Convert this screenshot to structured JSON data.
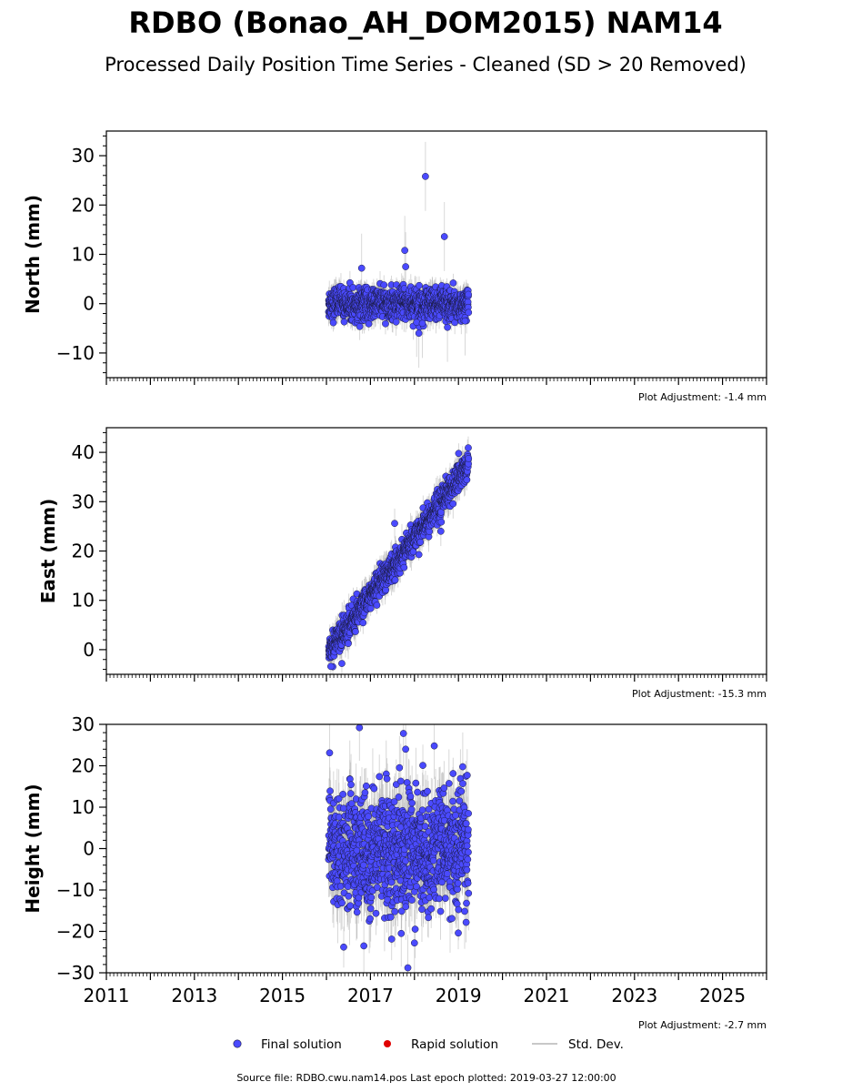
{
  "figure": {
    "title": "RDBO (Bonao_AH_DOM2015) NAM14",
    "subtitle": "Processed Daily Position Time Series - Cleaned (SD > 20 Removed)",
    "source_note": "Source file: RDBO.cwu.nam14.pos  Last epoch plotted: 2019-03-27 12:00:00"
  },
  "legend": {
    "final": "Final solution",
    "rapid": "Rapid solution",
    "std": "Std. Dev."
  },
  "colors": {
    "final": "#4a4aff",
    "rapid": "#e00000",
    "std": "#b0b0b0",
    "marker_edge": "#1a1a40"
  },
  "chart_data": [
    {
      "type": "scatter",
      "ylabel": "North (mm)",
      "adjustment": "Plot Adjustment: -1.4 mm",
      "xlim": [
        2011,
        2026
      ],
      "ylim": [
        -15,
        35
      ],
      "yticks": [
        "30",
        "20",
        "10",
        "0",
        "−10"
      ],
      "ytick_values": [
        30,
        20,
        10,
        0,
        -10
      ],
      "start": 2016.05,
      "end": 2019.23,
      "trend": [
        0,
        0
      ],
      "scatter": 1.6,
      "sd": 2.0,
      "outliers": [
        [
          2016.8,
          7.2
        ],
        [
          2017.78,
          10.8
        ],
        [
          2017.8,
          7.5
        ],
        [
          2018.25,
          25.8
        ],
        [
          2018.68,
          13.6
        ],
        [
          2018.1,
          -6.0
        ],
        [
          2018.05,
          -3.8
        ],
        [
          2018.75,
          -4.8
        ],
        [
          2019.15,
          -3.5
        ],
        [
          2018.18,
          -4.0
        ]
      ],
      "outlier_sd": 7
    },
    {
      "type": "scatter",
      "ylabel": "East (mm)",
      "adjustment": "Plot Adjustment: -15.3 mm",
      "xlim": [
        2011,
        2026
      ],
      "ylim": [
        -5,
        45
      ],
      "yticks": [
        "40",
        "30",
        "20",
        "10",
        "0"
      ],
      "ytick_values": [
        40,
        30,
        20,
        10,
        0
      ],
      "start": 2016.05,
      "end": 2019.23,
      "trend": [
        -0.5,
        37.5
      ],
      "scatter": 1.4,
      "sd": 2.2,
      "outliers": [
        [
          2016.1,
          -3.4
        ],
        [
          2016.35,
          -2.8
        ],
        [
          2017.55,
          25.6
        ],
        [
          2018.6,
          24.0
        ]
      ],
      "outlier_sd": 3
    },
    {
      "type": "scatter",
      "ylabel": "Height (mm)",
      "adjustment": "Plot Adjustment: -2.7 mm",
      "xlim": [
        2011,
        2026
      ],
      "ylim": [
        -30,
        30
      ],
      "yticks": [
        "30",
        "20",
        "10",
        "0",
        "−10",
        "−20",
        "−30"
      ],
      "ytick_values": [
        30,
        20,
        10,
        0,
        -10,
        -20,
        -30
      ],
      "xticks": [
        "2011",
        "2013",
        "2015",
        "2017",
        "2019",
        "2021",
        "2023",
        "2025"
      ],
      "xtick_values": [
        2011,
        2013,
        2015,
        2017,
        2019,
        2021,
        2023,
        2025
      ],
      "start": 2016.05,
      "end": 2019.23,
      "trend": [
        0,
        0
      ],
      "scatter": 7.0,
      "sd": 6.5,
      "outliers": [
        [
          2016.75,
          29.2
        ],
        [
          2017.75,
          27.8
        ],
        [
          2017.8,
          24.0
        ],
        [
          2018.45,
          24.8
        ],
        [
          2017.85,
          -28.8
        ],
        [
          2016.85,
          -23.5
        ],
        [
          2018.0,
          -22.8
        ],
        [
          2017.7,
          -20.5
        ]
      ],
      "outlier_sd": 8
    }
  ]
}
